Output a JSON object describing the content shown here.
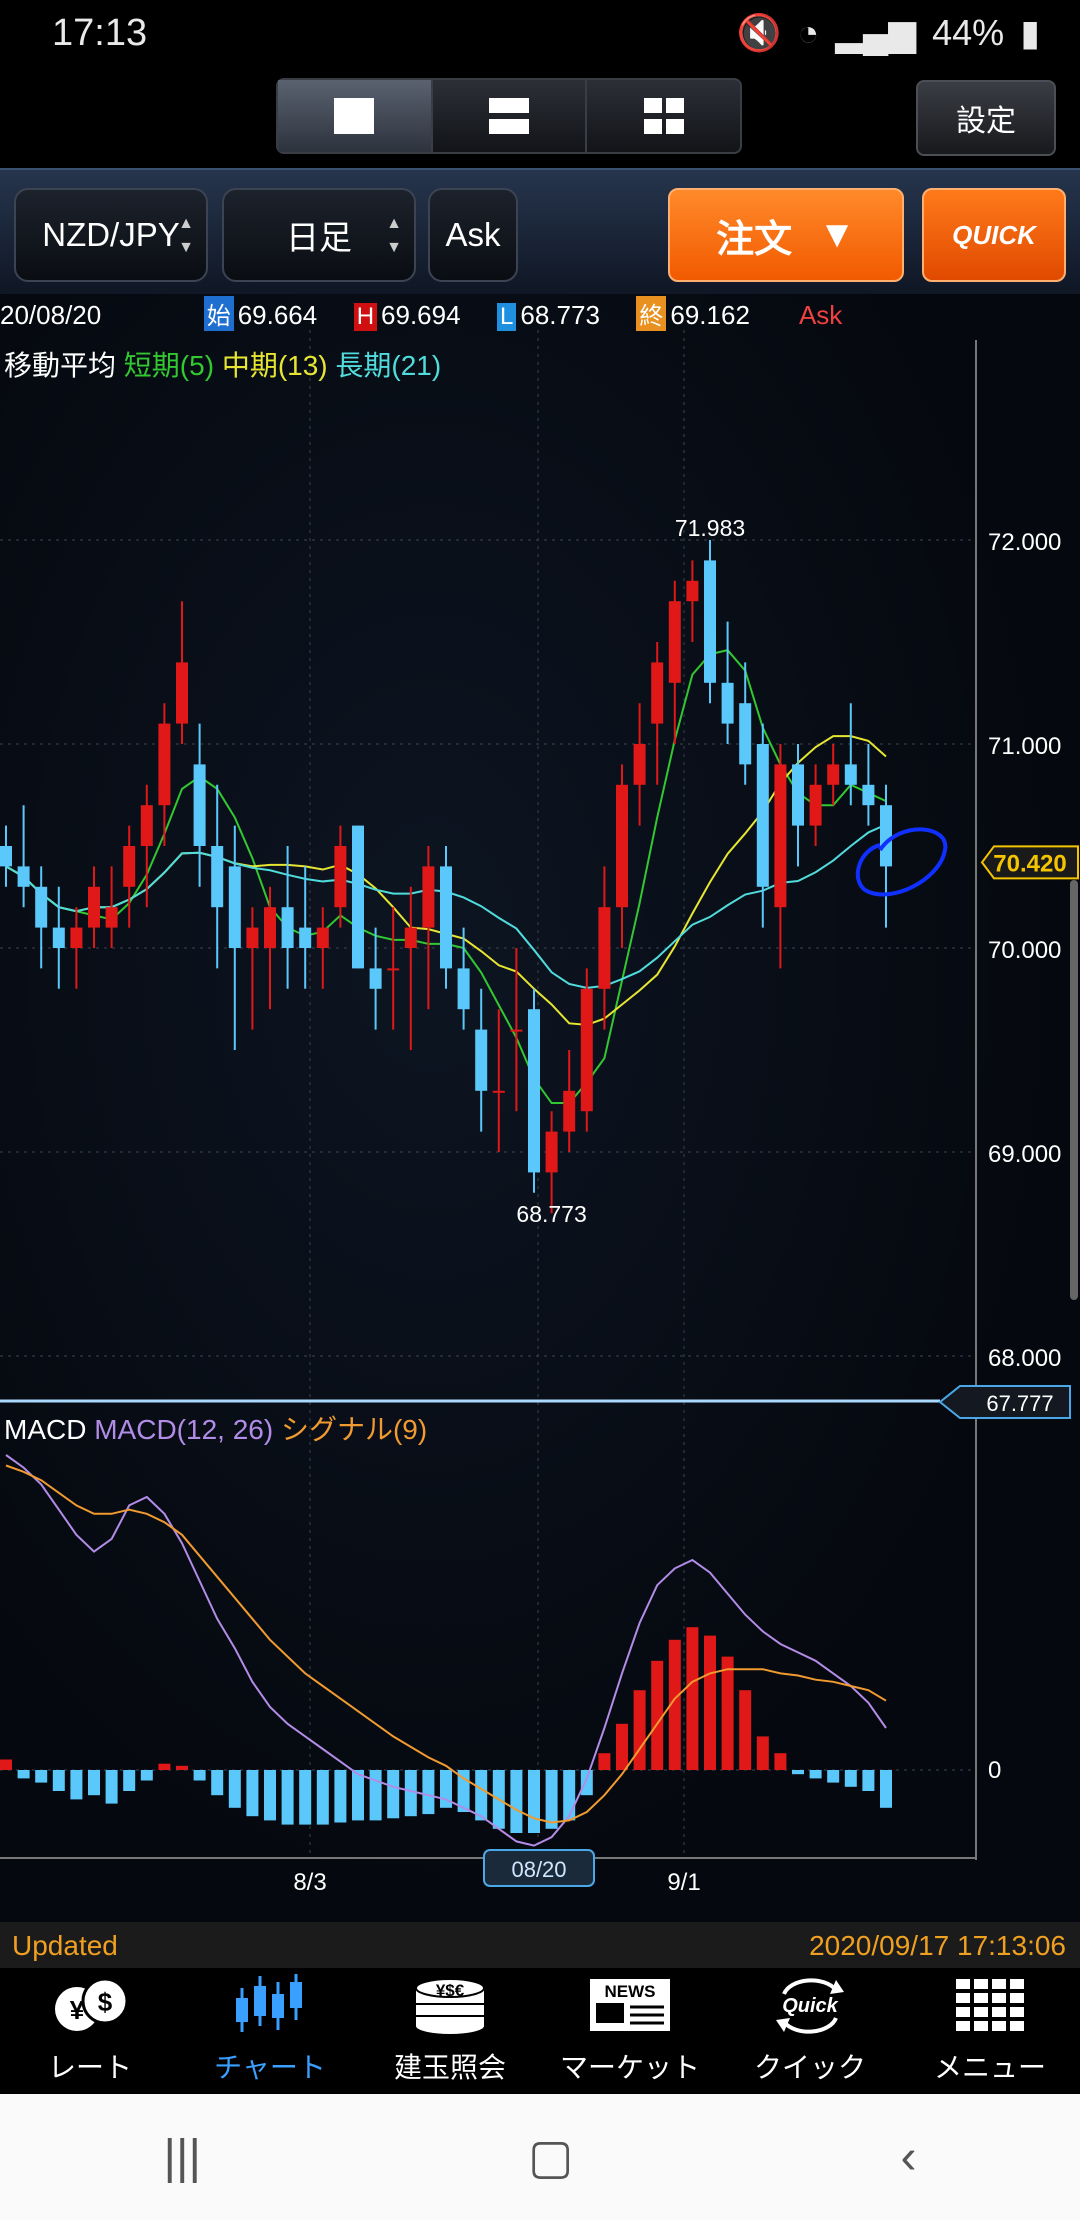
{
  "status": {
    "time": "17:13",
    "battery": "44%"
  },
  "layout_buttons": [
    "single",
    "split-2",
    "grid-4"
  ],
  "settings_label": "設定",
  "toolbar": {
    "pair": "NZD/JPY",
    "period": "日足",
    "side": "Ask",
    "order_label": "注文",
    "quick_label": "QUICK"
  },
  "ohlc": {
    "date": "20/08/20",
    "open_tag": "始",
    "open": "69.664",
    "high_tag": "H",
    "high": "69.694",
    "low_tag": "L",
    "low": "68.773",
    "close_tag": "終",
    "close": "69.162",
    "side": "Ask"
  },
  "ma_legend": {
    "title": "移動平均",
    "short": "短期(5)",
    "mid": "中期(13)",
    "long": "長期(21)"
  },
  "macd_legend": {
    "title": "MACD",
    "macd": "MACD(12, 26)",
    "signal": "シグナル(9)"
  },
  "colors": {
    "up": "#e01818",
    "down": "#5ac8fa",
    "short_ma": "#32c832",
    "mid_ma": "#e6e632",
    "long_ma": "#50dcdc",
    "macd": "#b28ce6",
    "signal": "#f09a30"
  },
  "chart_data": [
    {
      "type": "candlestick",
      "title": "NZD/JPY",
      "ylim": [
        68.0,
        72.0
      ],
      "y_ticks": [
        "72.000",
        "71.000",
        "70.000",
        "69.000",
        "68.000"
      ],
      "x_ticks": [
        "8/3",
        "08/20",
        "9/1"
      ],
      "current_price": "70.420",
      "marker_price": "67.777",
      "high_label": "71.983",
      "low_label": "68.773",
      "candles": [
        [
          70.5,
          70.6,
          70.3,
          70.4
        ],
        [
          70.4,
          70.7,
          70.2,
          70.3
        ],
        [
          70.3,
          70.4,
          69.9,
          70.1
        ],
        [
          70.1,
          70.3,
          69.8,
          70.0
        ],
        [
          70.0,
          70.2,
          69.8,
          70.1
        ],
        [
          70.1,
          70.4,
          70.0,
          70.3
        ],
        [
          70.1,
          70.4,
          70.0,
          70.2
        ],
        [
          70.3,
          70.6,
          70.1,
          70.5
        ],
        [
          70.5,
          70.8,
          70.2,
          70.7
        ],
        [
          70.7,
          71.2,
          70.5,
          71.1
        ],
        [
          71.1,
          71.7,
          71.0,
          71.4
        ],
        [
          70.9,
          71.1,
          70.3,
          70.5
        ],
        [
          70.5,
          70.8,
          69.9,
          70.2
        ],
        [
          70.4,
          70.6,
          69.5,
          70.0
        ],
        [
          70.0,
          70.2,
          69.6,
          70.1
        ],
        [
          70.0,
          70.3,
          69.7,
          70.2
        ],
        [
          70.2,
          70.5,
          69.8,
          70.0
        ],
        [
          70.1,
          70.4,
          69.8,
          70.0
        ],
        [
          70.0,
          70.2,
          69.8,
          70.1
        ],
        [
          70.2,
          70.6,
          70.1,
          70.5
        ],
        [
          70.6,
          70.6,
          69.9,
          69.9
        ],
        [
          69.9,
          70.1,
          69.6,
          69.8
        ],
        [
          69.9,
          70.2,
          69.6,
          69.9
        ],
        [
          70.0,
          70.3,
          69.5,
          70.1
        ],
        [
          70.1,
          70.5,
          69.7,
          70.4
        ],
        [
          70.4,
          70.5,
          69.8,
          69.9
        ],
        [
          69.9,
          70.1,
          69.6,
          69.7
        ],
        [
          69.6,
          69.8,
          69.1,
          69.3
        ],
        [
          69.3,
          69.7,
          69.0,
          69.3
        ],
        [
          69.6,
          70.0,
          69.2,
          69.6
        ],
        [
          69.7,
          69.8,
          68.8,
          68.9
        ],
        [
          68.9,
          69.2,
          68.7,
          69.1
        ],
        [
          69.1,
          69.5,
          69.0,
          69.3
        ],
        [
          69.2,
          69.9,
          69.1,
          69.8
        ],
        [
          69.8,
          70.4,
          69.6,
          70.2
        ],
        [
          70.2,
          70.9,
          70.0,
          70.8
        ],
        [
          70.8,
          71.2,
          70.6,
          71.0
        ],
        [
          71.1,
          71.5,
          70.8,
          71.4
        ],
        [
          71.3,
          71.8,
          71.0,
          71.7
        ],
        [
          71.7,
          71.9,
          71.5,
          71.8
        ],
        [
          71.9,
          72.0,
          71.2,
          71.3
        ],
        [
          71.3,
          71.6,
          71.0,
          71.1
        ],
        [
          71.2,
          71.4,
          70.8,
          70.9
        ],
        [
          71.0,
          71.1,
          70.1,
          70.3
        ],
        [
          70.2,
          71.0,
          69.9,
          70.9
        ],
        [
          70.9,
          71.0,
          70.4,
          70.6
        ],
        [
          70.6,
          70.9,
          70.5,
          70.8
        ],
        [
          70.8,
          71.0,
          70.7,
          70.9
        ],
        [
          70.9,
          71.2,
          70.7,
          70.8
        ],
        [
          70.8,
          71.0,
          70.6,
          70.7
        ],
        [
          70.7,
          70.8,
          70.1,
          70.4
        ]
      ]
    },
    {
      "type": "bar",
      "title": "MACD",
      "y_ticks": [
        "0"
      ],
      "histogram": [
        0.05,
        -0.04,
        -0.06,
        -0.1,
        -0.14,
        -0.12,
        -0.16,
        -0.1,
        -0.05,
        0.03,
        0.02,
        -0.05,
        -0.12,
        -0.18,
        -0.22,
        -0.24,
        -0.26,
        -0.26,
        -0.26,
        -0.25,
        -0.24,
        -0.24,
        -0.23,
        -0.22,
        -0.21,
        -0.18,
        -0.2,
        -0.24,
        -0.28,
        -0.3,
        -0.3,
        -0.28,
        -0.24,
        -0.12,
        0.08,
        0.22,
        0.38,
        0.52,
        0.62,
        0.68,
        0.64,
        0.54,
        0.38,
        0.16,
        0.08,
        -0.02,
        -0.04,
        -0.06,
        -0.08,
        -0.1,
        -0.18
      ],
      "macd_line": [
        1.5,
        1.44,
        1.36,
        1.24,
        1.12,
        1.04,
        1.1,
        1.26,
        1.3,
        1.22,
        1.08,
        0.9,
        0.72,
        0.58,
        0.42,
        0.3,
        0.22,
        0.16,
        0.1,
        0.04,
        -0.02,
        -0.05,
        -0.08,
        -0.1,
        -0.12,
        -0.14,
        -0.18,
        -0.22,
        -0.28,
        -0.34,
        -0.36,
        -0.32,
        -0.22,
        -0.04,
        0.2,
        0.46,
        0.7,
        0.88,
        0.96,
        1.0,
        0.94,
        0.84,
        0.74,
        0.66,
        0.6,
        0.56,
        0.52,
        0.46,
        0.4,
        0.32,
        0.2
      ],
      "signal_line": [
        1.45,
        1.42,
        1.38,
        1.32,
        1.26,
        1.22,
        1.22,
        1.24,
        1.22,
        1.18,
        1.12,
        1.02,
        0.92,
        0.82,
        0.72,
        0.62,
        0.54,
        0.46,
        0.4,
        0.34,
        0.28,
        0.22,
        0.16,
        0.11,
        0.06,
        0.02,
        -0.04,
        -0.09,
        -0.14,
        -0.19,
        -0.23,
        -0.25,
        -0.24,
        -0.2,
        -0.12,
        -0.02,
        0.1,
        0.22,
        0.34,
        0.42,
        0.46,
        0.48,
        0.48,
        0.48,
        0.46,
        0.45,
        0.43,
        0.42,
        0.4,
        0.38,
        0.33
      ]
    }
  ],
  "updated": {
    "label": "Updated",
    "timestamp": "2020/09/17 17:13:06"
  },
  "tabs": [
    {
      "label": "レート",
      "icon": "yen-dollar-icon",
      "active": false
    },
    {
      "label": "チャート",
      "icon": "candlestick-icon",
      "active": true
    },
    {
      "label": "建玉照会",
      "icon": "coins-icon",
      "active": false
    },
    {
      "label": "マーケット",
      "icon": "news-icon",
      "active": false
    },
    {
      "label": "クイック",
      "icon": "quick-icon",
      "active": false
    },
    {
      "label": "メニュー",
      "icon": "grid-menu-icon",
      "active": false
    }
  ],
  "navbar": [
    "recent-apps",
    "home",
    "back"
  ]
}
